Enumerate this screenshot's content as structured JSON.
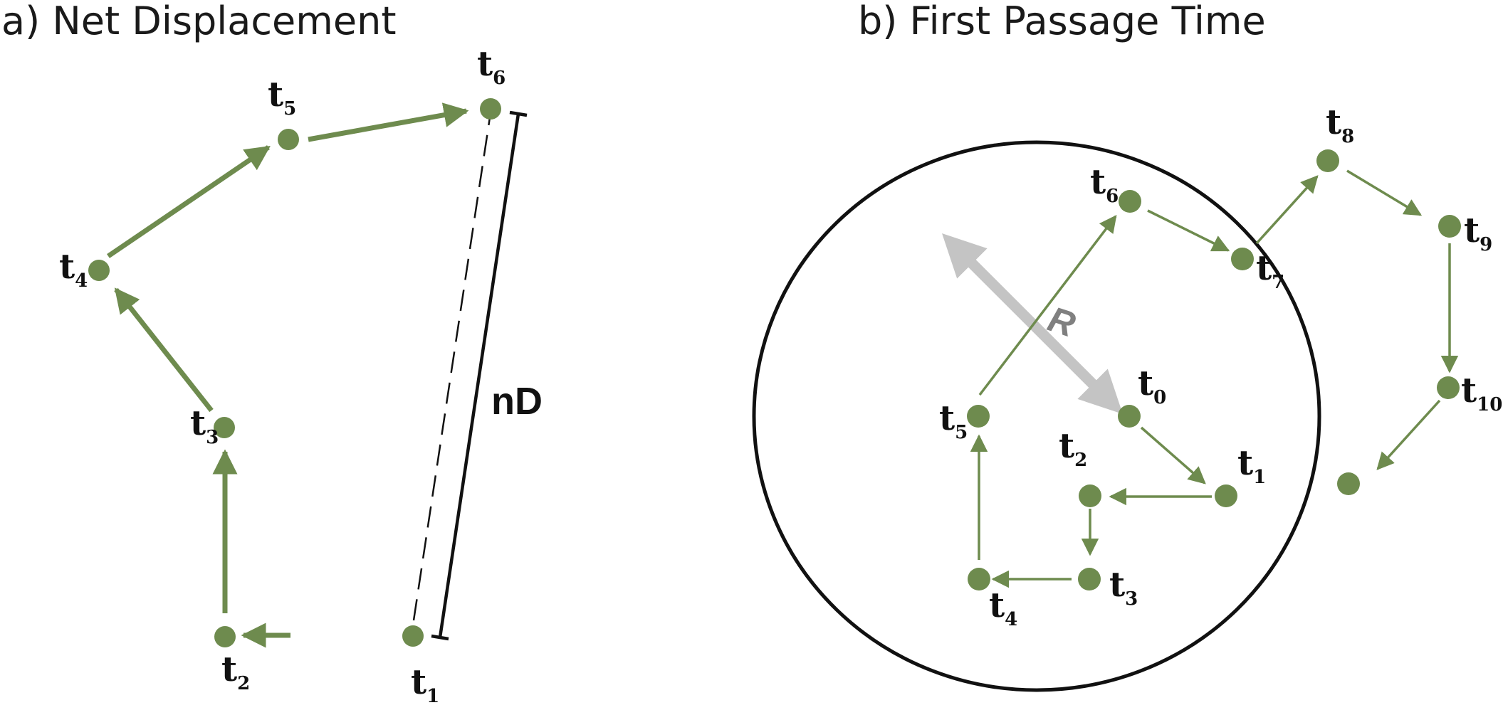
{
  "colors": {
    "walk": "#6e8b4e",
    "outline": "#111111",
    "radius_arrow": "#c4c4c4",
    "radius_label": "#808080"
  },
  "panel_a": {
    "title": "a) Net Displacement",
    "displacement_label": "nD",
    "points": [
      {
        "base": "t",
        "sub": "1"
      },
      {
        "base": "t",
        "sub": "2"
      },
      {
        "base": "t",
        "sub": "3"
      },
      {
        "base": "t",
        "sub": "4"
      },
      {
        "base": "t",
        "sub": "5"
      },
      {
        "base": "t",
        "sub": "6"
      }
    ]
  },
  "panel_b": {
    "title": "b) First Passage Time",
    "radius_label": "R",
    "points": [
      {
        "base": "t",
        "sub": "0"
      },
      {
        "base": "t",
        "sub": "1"
      },
      {
        "base": "t",
        "sub": "2"
      },
      {
        "base": "t",
        "sub": "3"
      },
      {
        "base": "t",
        "sub": "4"
      },
      {
        "base": "t",
        "sub": "5"
      },
      {
        "base": "t",
        "sub": "6"
      },
      {
        "base": "t",
        "sub": "7"
      },
      {
        "base": "t",
        "sub": "8"
      },
      {
        "base": "t",
        "sub": "9"
      },
      {
        "base": "t",
        "sub": "10"
      }
    ]
  }
}
